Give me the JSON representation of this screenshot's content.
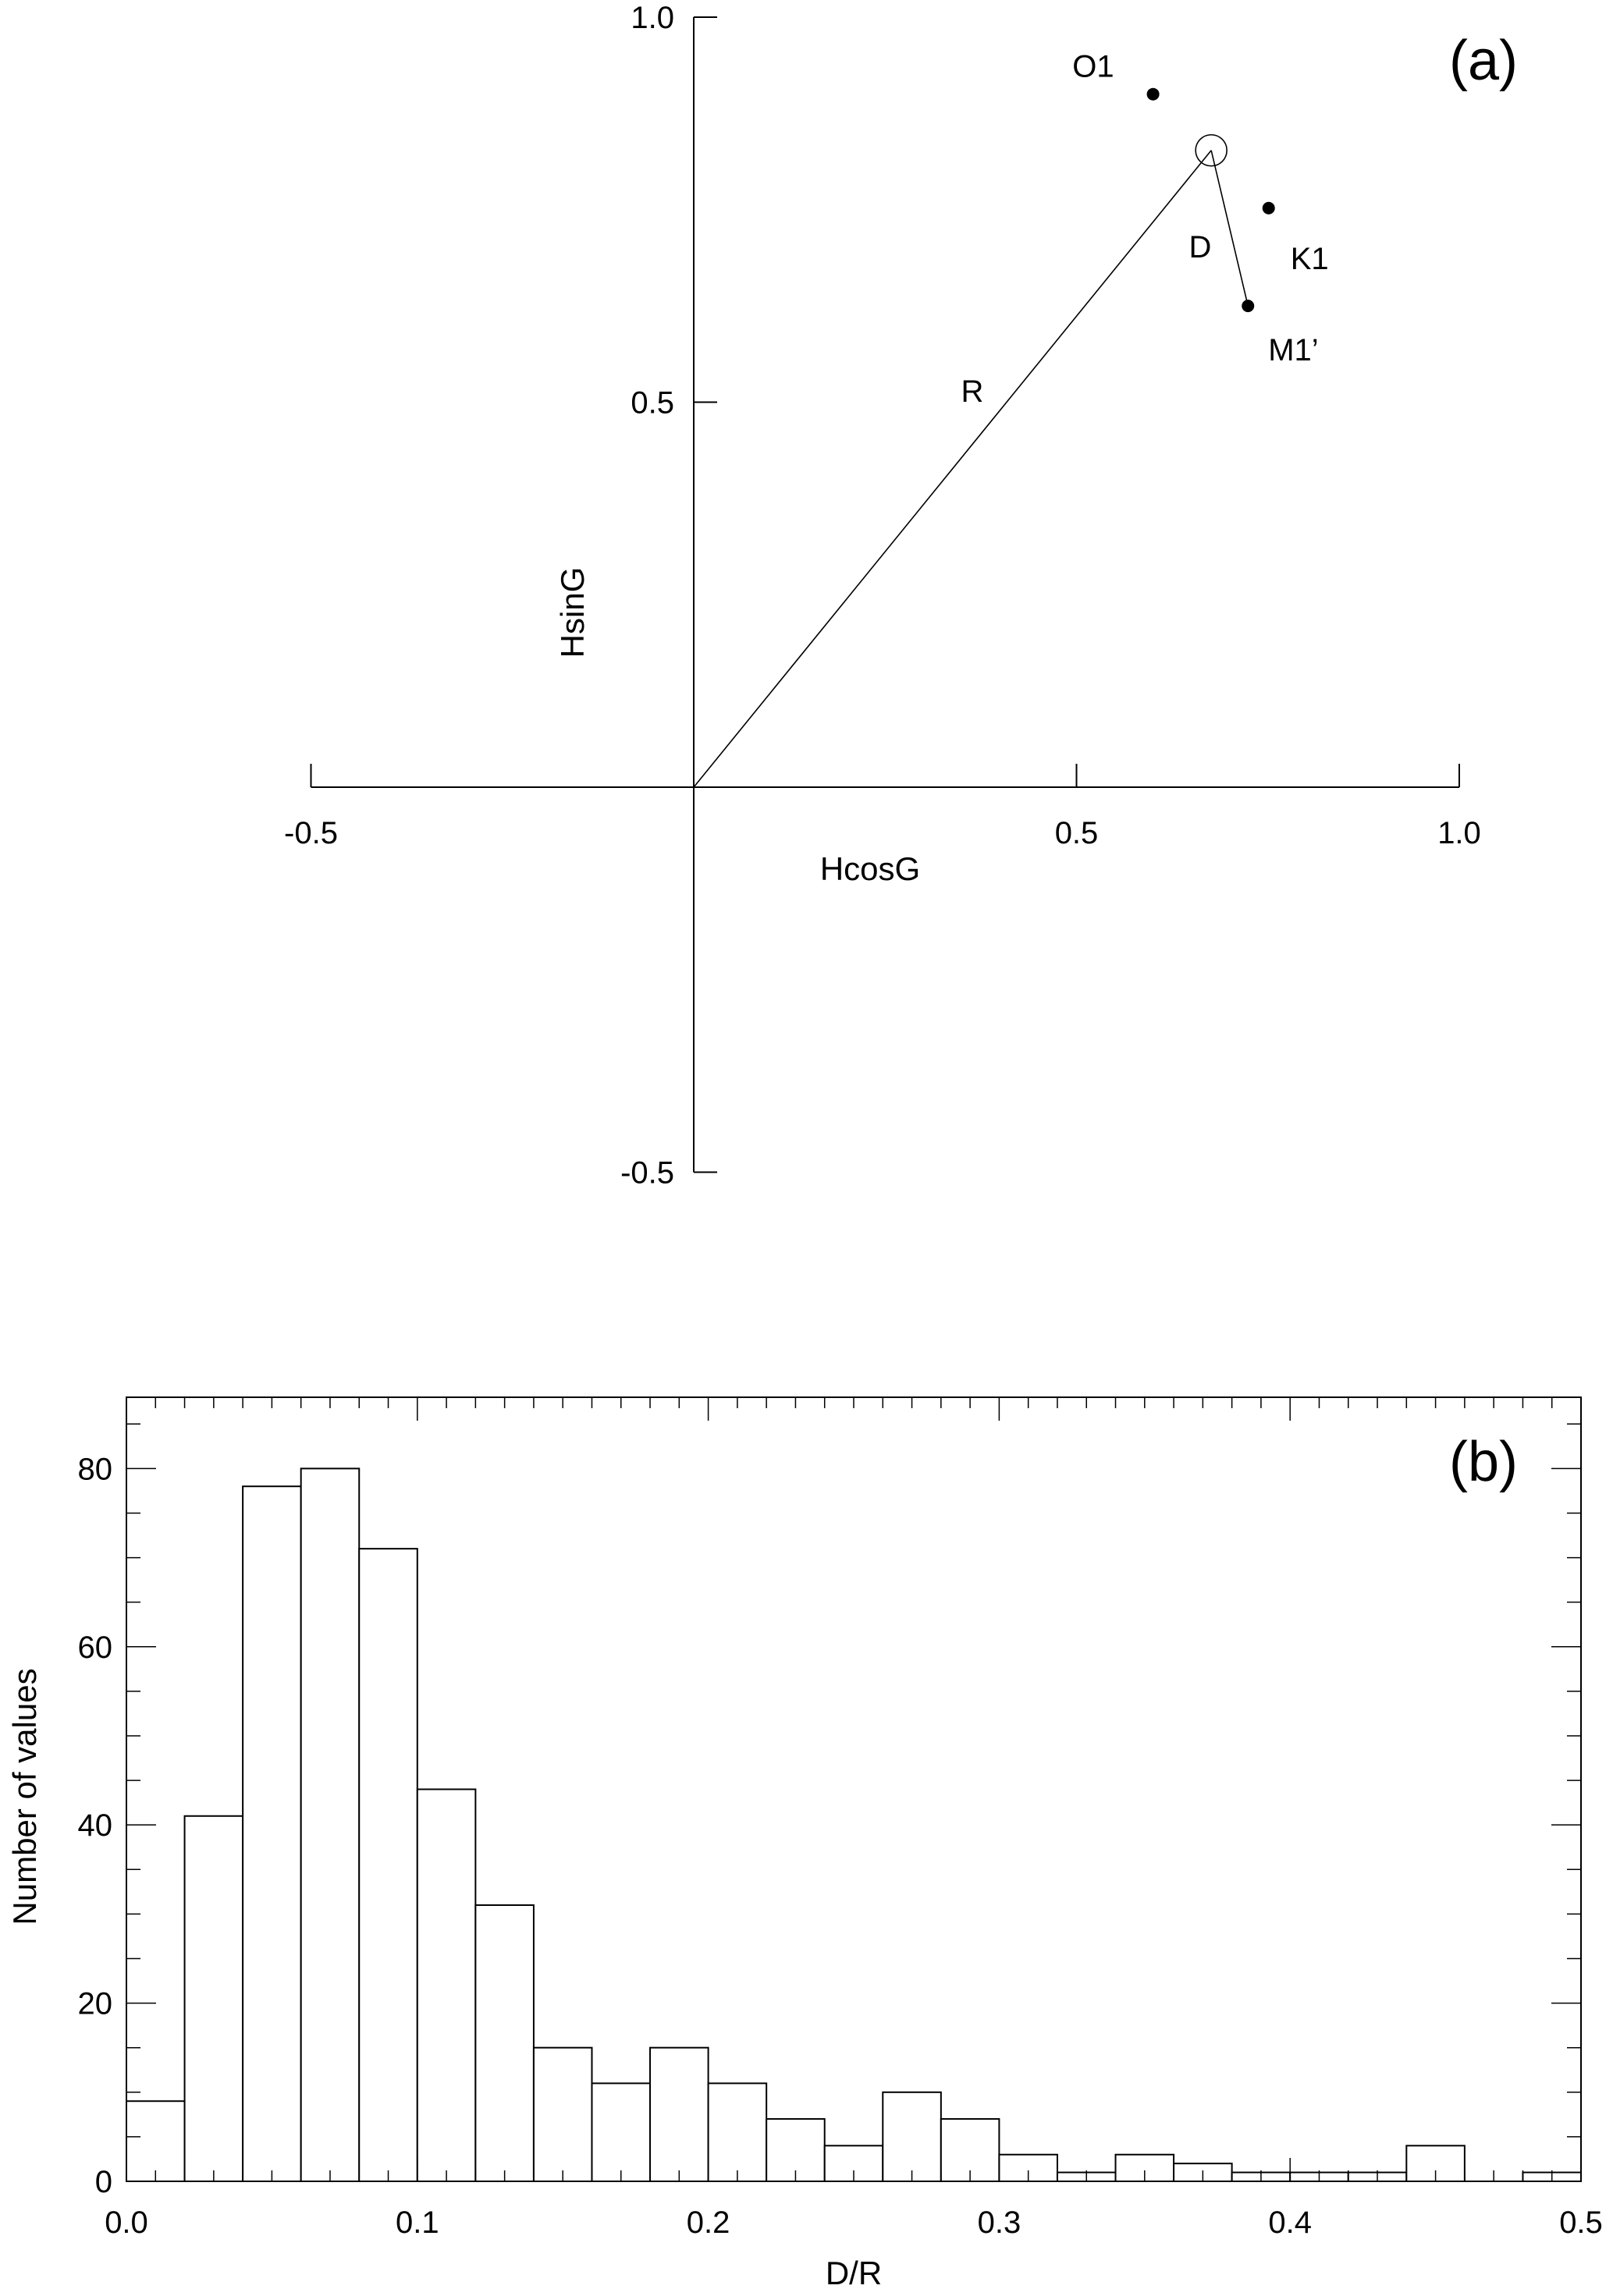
{
  "chart_data": [
    {
      "type": "scatter",
      "panel_label": "(a)",
      "xlabel": "HcosG",
      "ylabel": "HsinG",
      "xlim": [
        -0.5,
        1.0
      ],
      "ylim": [
        -0.5,
        1.0
      ],
      "xticks": [
        -0.5,
        0.5,
        1.0
      ],
      "xtick_labels": [
        "-0.5",
        "0.5",
        "1.0"
      ],
      "yticks": [
        1.0,
        0.5,
        -0.5
      ],
      "ytick_labels": [
        "1.0",
        "0.5",
        "-0.5"
      ],
      "points": [
        {
          "name": "O1",
          "x": 0.6,
          "y": 0.9
        },
        {
          "name": "K1",
          "x": 0.751,
          "y": 0.752
        },
        {
          "name": "M1’",
          "x": 0.724,
          "y": 0.625
        }
      ],
      "mean_point": {
        "x": 0.676,
        "y": 0.827
      },
      "annotations": {
        "R": "R",
        "D": "D"
      }
    },
    {
      "type": "bar",
      "panel_label": "(b)",
      "xlabel": "D/R",
      "ylabel": "Number of values",
      "xlim": [
        0.0,
        0.5
      ],
      "ylim": [
        0,
        88
      ],
      "bin_width": 0.02,
      "bin_starts": [
        0.0,
        0.02,
        0.04,
        0.06,
        0.08,
        0.1,
        0.12,
        0.14,
        0.16,
        0.18,
        0.2,
        0.22,
        0.24,
        0.26,
        0.28,
        0.3,
        0.32,
        0.34,
        0.36,
        0.38,
        0.4,
        0.42,
        0.44,
        0.46,
        0.48
      ],
      "values": [
        9,
        41,
        78,
        80,
        71,
        44,
        31,
        15,
        11,
        15,
        11,
        7,
        4,
        10,
        7,
        3,
        1,
        3,
        2,
        1,
        1,
        1,
        4,
        0,
        1
      ],
      "xticks": [
        0.0,
        0.1,
        0.2,
        0.3,
        0.4,
        0.5
      ],
      "xtick_labels": [
        "0.0",
        "0.1",
        "0.2",
        "0.3",
        "0.4",
        "0.5"
      ],
      "yticks": [
        0,
        20,
        40,
        60,
        80
      ],
      "ytick_labels": [
        "0",
        "20",
        "40",
        "60",
        "80"
      ]
    }
  ]
}
